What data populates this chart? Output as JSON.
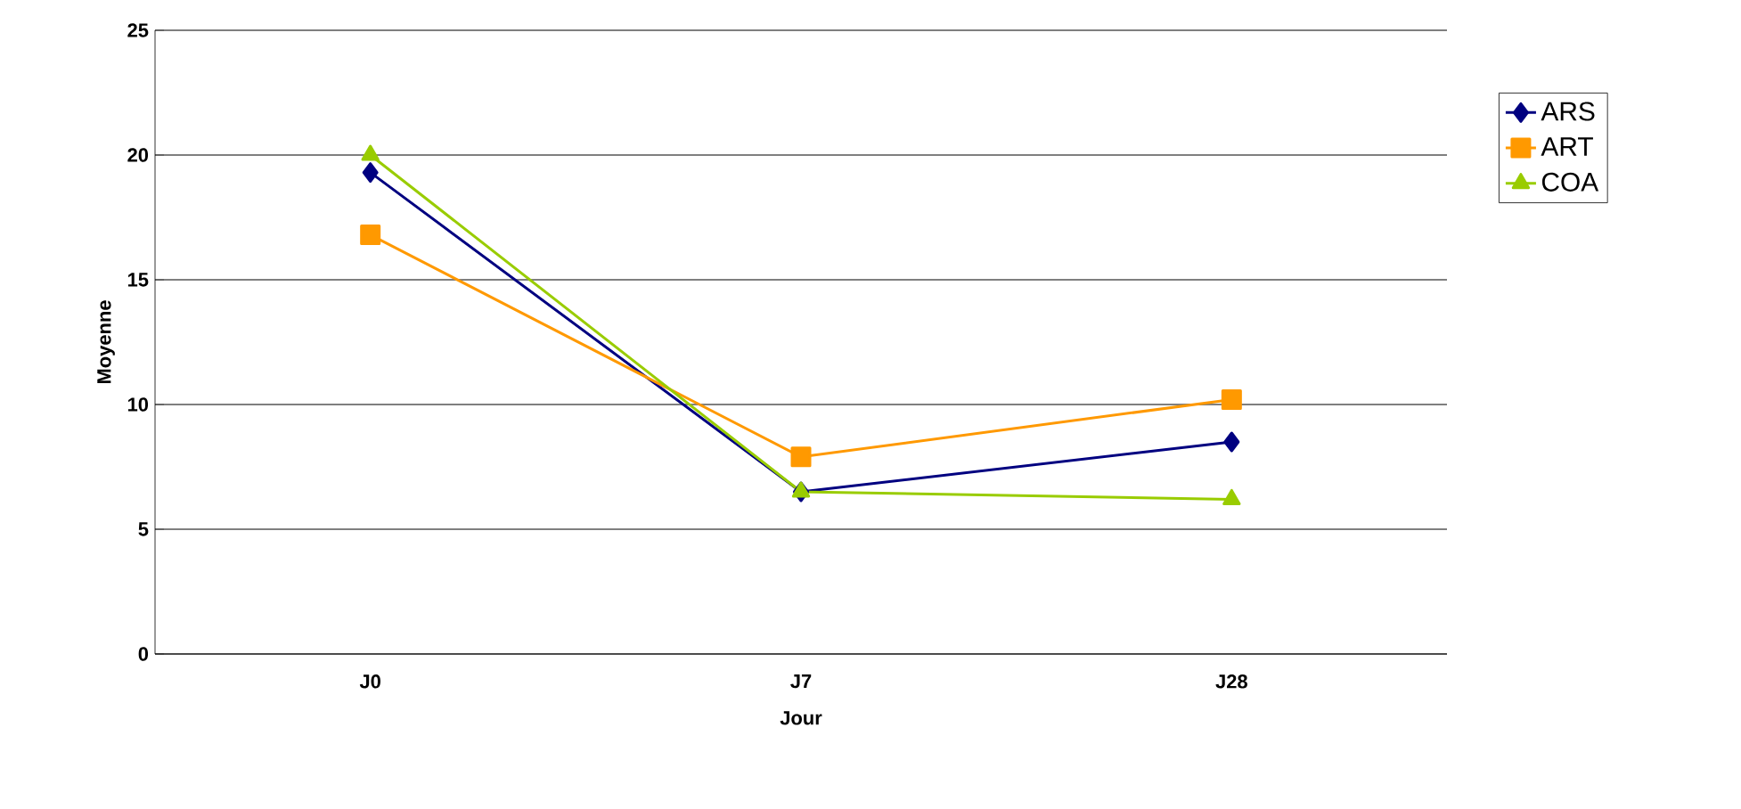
{
  "chart_data": {
    "type": "line",
    "xlabel": "Jour",
    "ylabel": "Moyenne",
    "categories": [
      "J0",
      "J7",
      "J28"
    ],
    "series": [
      {
        "name": "ARS",
        "color": "#000080",
        "marker": "diamond",
        "values": [
          19.3,
          6.5,
          8.5
        ]
      },
      {
        "name": "ART",
        "color": "#ff9900",
        "marker": "square",
        "values": [
          16.8,
          7.9,
          10.2
        ]
      },
      {
        "name": "COA",
        "color": "#99cc00",
        "marker": "triangle",
        "values": [
          20.0,
          6.5,
          6.2
        ]
      }
    ],
    "ylim": [
      0,
      25
    ],
    "yticks": [
      0,
      5,
      10,
      15,
      20,
      25
    ],
    "grid": "y",
    "legend": "right",
    "line_style": "solid"
  }
}
